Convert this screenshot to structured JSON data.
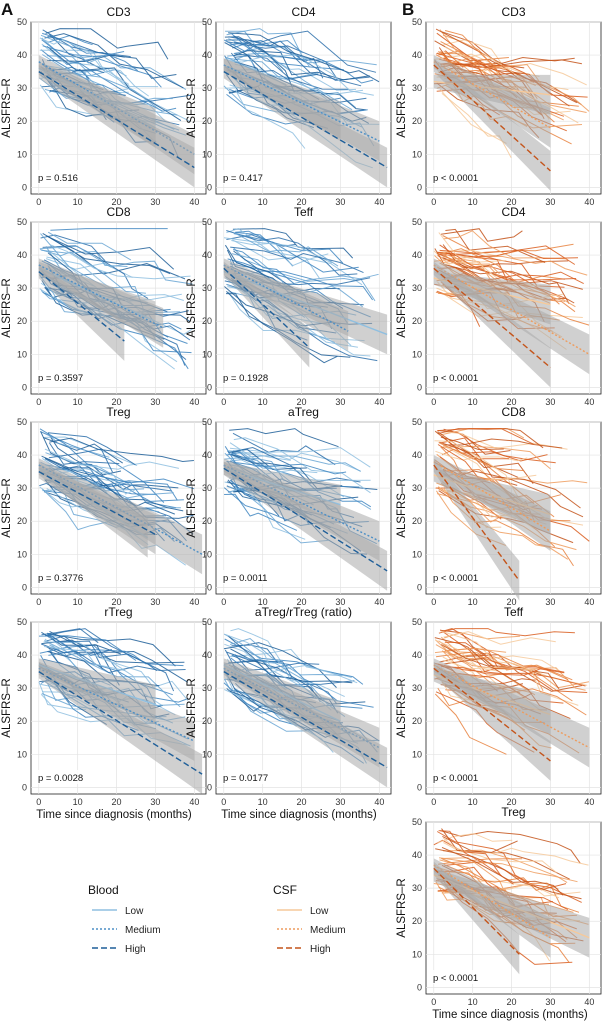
{
  "panel_labels": {
    "a": "A",
    "b": "B"
  },
  "y_axis_label": "ALSFRS–R",
  "x_axis_label": "Time since diagnosis (months)",
  "axes": {
    "xlim": [
      -2,
      43
    ],
    "ylim": [
      -2,
      50
    ],
    "xticks": [
      0,
      10,
      20,
      30,
      40
    ],
    "yticks": [
      0,
      10,
      20,
      30,
      40,
      50
    ],
    "grid": true
  },
  "colors": {
    "blood": "#2b6faa",
    "blood_light": "#8fbfe0",
    "csf": "#d95d1e",
    "csf_light": "#f6c99a",
    "ribbon": "#a9a9a9",
    "grid": "#e3e3e3"
  },
  "legend": {
    "blood": {
      "title": "Blood",
      "items": [
        "Low",
        "Medium",
        "High"
      ]
    },
    "csf": {
      "title": "CSF",
      "items": [
        "Low",
        "Medium",
        "High"
      ]
    }
  },
  "chart_data": [
    {
      "type": "line",
      "group": "A",
      "source": "Blood",
      "title": "CD3",
      "p_value": "p = 0.516",
      "trend": {
        "Low": [
          [
            0,
            36
          ],
          [
            30,
            18
          ]
        ],
        "Medium": [
          [
            0,
            38
          ],
          [
            40,
            10
          ]
        ],
        "High": [
          [
            0,
            35
          ],
          [
            40,
            6
          ]
        ]
      }
    },
    {
      "type": "line",
      "group": "A",
      "source": "Blood",
      "title": "CD4",
      "p_value": "p = 0.417",
      "trend": {
        "Low": [
          [
            0,
            37
          ],
          [
            30,
            20
          ]
        ],
        "Medium": [
          [
            0,
            37
          ],
          [
            40,
            14
          ]
        ],
        "High": [
          [
            0,
            35
          ],
          [
            42,
            6
          ]
        ]
      }
    },
    {
      "type": "line",
      "group": "A",
      "source": "Blood",
      "title": "CD8",
      "p_value": "p = 0.3597",
      "trend": {
        "Low": [
          [
            0,
            36
          ],
          [
            30,
            20
          ]
        ],
        "Medium": [
          [
            0,
            37
          ],
          [
            32,
            18
          ]
        ],
        "High": [
          [
            0,
            35
          ],
          [
            22,
            14
          ]
        ]
      }
    },
    {
      "type": "line",
      "group": "A",
      "source": "Blood",
      "title": "Teff",
      "p_value": "p = 0.1928",
      "trend": {
        "Low": [
          [
            0,
            35
          ],
          [
            42,
            16
          ]
        ],
        "Medium": [
          [
            0,
            37
          ],
          [
            32,
            17
          ]
        ],
        "High": [
          [
            0,
            36
          ],
          [
            22,
            12
          ]
        ]
      }
    },
    {
      "type": "line",
      "group": "A",
      "source": "Blood",
      "title": "Treg",
      "p_value": "p = 0.3776",
      "trend": {
        "Low": [
          [
            0,
            36
          ],
          [
            28,
            15
          ]
        ],
        "Medium": [
          [
            0,
            37
          ],
          [
            42,
            10
          ]
        ],
        "High": [
          [
            0,
            35
          ],
          [
            30,
            16
          ]
        ]
      }
    },
    {
      "type": "line",
      "group": "A",
      "source": "Blood",
      "title": "aTreg",
      "p_value": "p = 0.0011",
      "trend": {
        "Low": [
          [
            0,
            36
          ],
          [
            30,
            25
          ]
        ],
        "Medium": [
          [
            0,
            37
          ],
          [
            40,
            14
          ]
        ],
        "High": [
          [
            0,
            36
          ],
          [
            42,
            5
          ]
        ]
      }
    },
    {
      "type": "line",
      "group": "A",
      "source": "Blood",
      "title": "rTreg",
      "p_value": "p = 0.0028",
      "trend": {
        "Low": [
          [
            0,
            37
          ],
          [
            30,
            25
          ]
        ],
        "Medium": [
          [
            0,
            36
          ],
          [
            40,
            14
          ]
        ],
        "High": [
          [
            0,
            35
          ],
          [
            42,
            4
          ]
        ]
      }
    },
    {
      "type": "line",
      "group": "A",
      "source": "Blood",
      "title": "aTreg/rTreg (ratio)",
      "p_value": "p = 0.0177",
      "trend": {
        "Low": [
          [
            0,
            37
          ],
          [
            30,
            20
          ]
        ],
        "Medium": [
          [
            0,
            36
          ],
          [
            40,
            12
          ]
        ],
        "High": [
          [
            0,
            35
          ],
          [
            42,
            6
          ]
        ]
      }
    },
    {
      "type": "line",
      "group": "B",
      "source": "CSF",
      "title": "CD3",
      "p_value": "p < 0.0001",
      "trend": {
        "Low": [
          [
            0,
            32
          ],
          [
            30,
            28
          ]
        ],
        "Medium": [
          [
            0,
            38
          ],
          [
            30,
            18
          ]
        ],
        "High": [
          [
            0,
            37
          ],
          [
            30,
            5
          ]
        ]
      }
    },
    {
      "type": "line",
      "group": "B",
      "source": "CSF",
      "title": "CD4",
      "p_value": "p < 0.0001",
      "trend": {
        "Low": [
          [
            0,
            33
          ],
          [
            30,
            25
          ]
        ],
        "Medium": [
          [
            0,
            37
          ],
          [
            40,
            10
          ]
        ],
        "High": [
          [
            0,
            36
          ],
          [
            30,
            6
          ]
        ]
      }
    },
    {
      "type": "line",
      "group": "B",
      "source": "CSF",
      "title": "CD8",
      "p_value": "p < 0.0001",
      "trend": {
        "Low": [
          [
            0,
            34
          ],
          [
            30,
            22
          ]
        ],
        "Medium": [
          [
            0,
            38
          ],
          [
            30,
            17
          ]
        ],
        "High": [
          [
            0,
            37
          ],
          [
            22,
            2
          ]
        ]
      }
    },
    {
      "type": "line",
      "group": "B",
      "source": "CSF",
      "title": "Teff",
      "p_value": "p < 0.0001",
      "trend": {
        "Low": [
          [
            0,
            34
          ],
          [
            30,
            22
          ]
        ],
        "Medium": [
          [
            0,
            37
          ],
          [
            40,
            12
          ]
        ],
        "High": [
          [
            0,
            36
          ],
          [
            30,
            8
          ]
        ]
      }
    },
    {
      "type": "line",
      "group": "B",
      "source": "CSF",
      "title": "Treg",
      "p_value": "p < 0.0001",
      "trend": {
        "Low": [
          [
            0,
            34
          ],
          [
            40,
            15
          ]
        ],
        "Medium": [
          [
            0,
            37
          ],
          [
            30,
            15
          ]
        ],
        "High": [
          [
            0,
            36
          ],
          [
            22,
            10
          ]
        ]
      }
    }
  ]
}
